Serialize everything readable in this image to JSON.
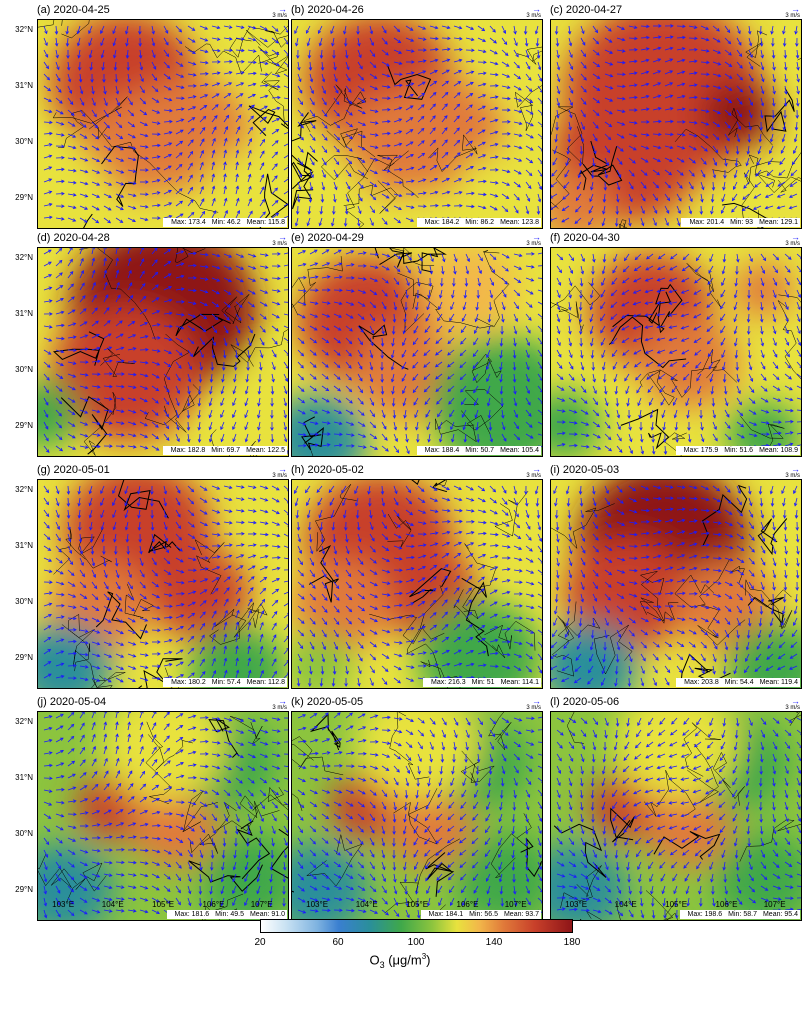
{
  "figure": {
    "panels": [
      {
        "label": "(a) 2020-04-25",
        "max": "Max: 173.4",
        "min": "Min: 46.2",
        "mean": "Mean: 115.8",
        "theme": "hot-mid"
      },
      {
        "label": "(b) 2020-04-26",
        "max": "Max: 184.2",
        "min": "Min: 86.2",
        "mean": "Mean: 123.8",
        "theme": "hot-mid"
      },
      {
        "label": "(c) 2020-04-27",
        "max": "Max: 201.4",
        "min": "Min: 93",
        "mean": "Mean: 129.1",
        "theme": "hot-high"
      },
      {
        "label": "(d) 2020-04-28",
        "max": "Max: 182.8",
        "min": "Min: 69.7",
        "mean": "Mean: 122.5",
        "theme": "hot-high-west-green"
      },
      {
        "label": "(e) 2020-04-29",
        "max": "Max: 188.4",
        "min": "Min: 50.7",
        "mean": "Mean: 105.4",
        "theme": "mixed-se-green"
      },
      {
        "label": "(f) 2020-04-30",
        "max": "Max: 175.9",
        "min": "Min: 51.6",
        "mean": "Mean: 108.9",
        "theme": "mixed"
      },
      {
        "label": "(g) 2020-05-01",
        "max": "Max: 180.2",
        "min": "Min: 57.4",
        "mean": "Mean: 112.8",
        "theme": "hot-mid-south-green"
      },
      {
        "label": "(h) 2020-05-02",
        "max": "Max: 216.3",
        "min": "Min: 51",
        "mean": "Mean: 114.1",
        "theme": "hot-mid-se-green"
      },
      {
        "label": "(i) 2020-05-03",
        "max": "Max: 203.8",
        "min": "Min: 54.4",
        "mean": "Mean: 119.4",
        "theme": "hot-high-south-green"
      },
      {
        "label": "(j) 2020-05-04",
        "max": "Max: 181.6",
        "min": "Min: 49.5",
        "mean": "Mean: 91.0",
        "theme": "cool"
      },
      {
        "label": "(k) 2020-05-05",
        "max": "Max: 184.1",
        "min": "Min: 56.5",
        "mean": "Mean: 93.7",
        "theme": "cool"
      },
      {
        "label": "(l) 2020-05-06",
        "max": "Max: 198.6",
        "min": "Min: 58.7",
        "mean": "Mean: 95.4",
        "theme": "cool"
      }
    ],
    "ref_vector": "3 m/s",
    "lat_labels": [
      "32°N",
      "31°N",
      "30°N",
      "29°N"
    ],
    "lon_labels": [
      "103°E",
      "104°E",
      "105°E",
      "106°E",
      "107°E"
    ],
    "colorbar": {
      "ticks": [
        "20",
        "60",
        "100",
        "140",
        "180"
      ],
      "title_main": "O",
      "title_sub": "3",
      "title_unit": " (μg/m",
      "title_sup": "3",
      "title_end": ")"
    },
    "colors": {
      "vector": "#1a1aff",
      "boundary": "#000000"
    }
  }
}
